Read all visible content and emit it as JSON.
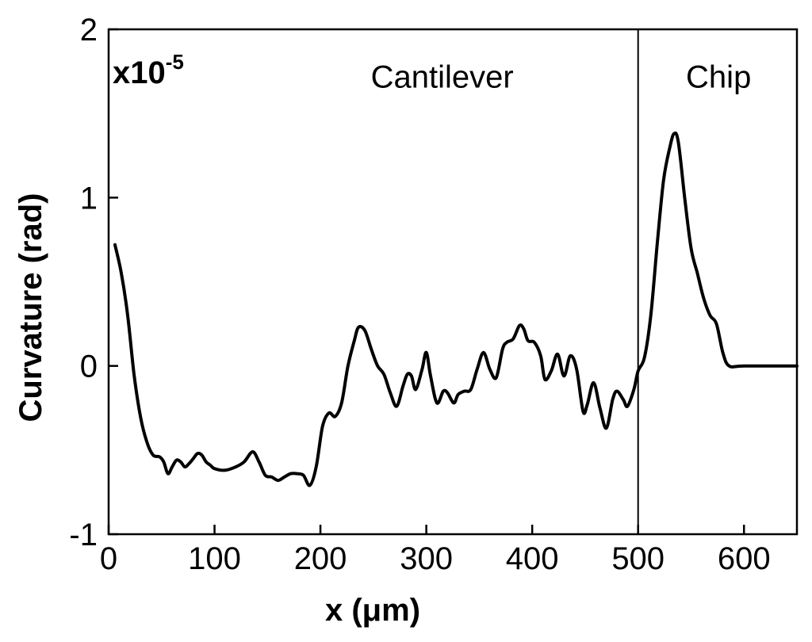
{
  "chart_data": {
    "type": "line",
    "title": "",
    "xlabel": "x (μm)",
    "ylabel": "Curvature (rad)",
    "xlim": [
      0,
      650
    ],
    "ylim": [
      -1,
      2
    ],
    "x_ticks": [
      0,
      100,
      200,
      300,
      400,
      500,
      600
    ],
    "y_ticks": [
      -1,
      0,
      1,
      2
    ],
    "y_scale_base": "x10",
    "y_scale_exp": "-5",
    "grid": false,
    "legend": "none",
    "line_color": "#000000",
    "divider_x": 500,
    "annotations": [
      {
        "text": "Cantilever",
        "x": 315,
        "y": 1.72
      },
      {
        "text": "Chip",
        "x": 576,
        "y": 1.72
      }
    ],
    "series": [
      {
        "x": [
          6,
          12,
          18,
          24,
          30,
          36,
          42,
          48,
          52,
          56,
          60,
          64,
          68,
          72,
          76,
          80,
          84,
          88,
          92,
          96,
          100,
          110,
          120,
          128,
          136,
          142,
          148,
          154,
          160,
          166,
          172,
          178,
          184,
          190,
          196,
          202,
          208,
          214,
          220,
          226,
          232,
          236,
          242,
          248,
          254,
          260,
          266,
          272,
          278,
          282,
          286,
          290,
          296,
          300,
          304,
          310,
          316,
          320,
          326,
          330,
          336,
          342,
          348,
          354,
          360,
          366,
          372,
          376,
          382,
          388,
          392,
          396,
          402,
          408,
          412,
          418,
          424,
          430,
          436,
          442,
          448,
          452,
          458,
          464,
          470,
          476,
          480,
          486,
          490,
          496,
          500,
          506,
          512,
          518,
          524,
          530,
          534,
          538,
          544,
          550,
          556,
          562,
          568,
          574,
          580,
          586,
          600,
          650
        ],
        "values": [
          0.72,
          0.55,
          0.3,
          -0.05,
          -0.3,
          -0.45,
          -0.53,
          -0.54,
          -0.57,
          -0.64,
          -0.6,
          -0.56,
          -0.57,
          -0.6,
          -0.58,
          -0.55,
          -0.52,
          -0.53,
          -0.57,
          -0.59,
          -0.61,
          -0.62,
          -0.6,
          -0.57,
          -0.51,
          -0.57,
          -0.65,
          -0.66,
          -0.68,
          -0.66,
          -0.64,
          -0.64,
          -0.65,
          -0.71,
          -0.6,
          -0.36,
          -0.28,
          -0.3,
          -0.22,
          0.0,
          0.15,
          0.23,
          0.21,
          0.1,
          0.0,
          -0.05,
          -0.16,
          -0.24,
          -0.12,
          -0.05,
          -0.06,
          -0.14,
          -0.02,
          0.08,
          -0.06,
          -0.22,
          -0.15,
          -0.16,
          -0.22,
          -0.17,
          -0.15,
          -0.14,
          -0.02,
          0.08,
          -0.02,
          -0.07,
          0.1,
          0.14,
          0.16,
          0.24,
          0.22,
          0.15,
          0.14,
          0.06,
          -0.08,
          -0.03,
          0.07,
          -0.06,
          0.06,
          -0.02,
          -0.27,
          -0.23,
          -0.1,
          -0.25,
          -0.37,
          -0.2,
          -0.15,
          -0.2,
          -0.24,
          -0.14,
          -0.03,
          0.05,
          0.3,
          0.72,
          1.1,
          1.3,
          1.38,
          1.33,
          1.0,
          0.7,
          0.55,
          0.4,
          0.3,
          0.25,
          0.08,
          0.0,
          0.0,
          0.0
        ]
      }
    ]
  }
}
